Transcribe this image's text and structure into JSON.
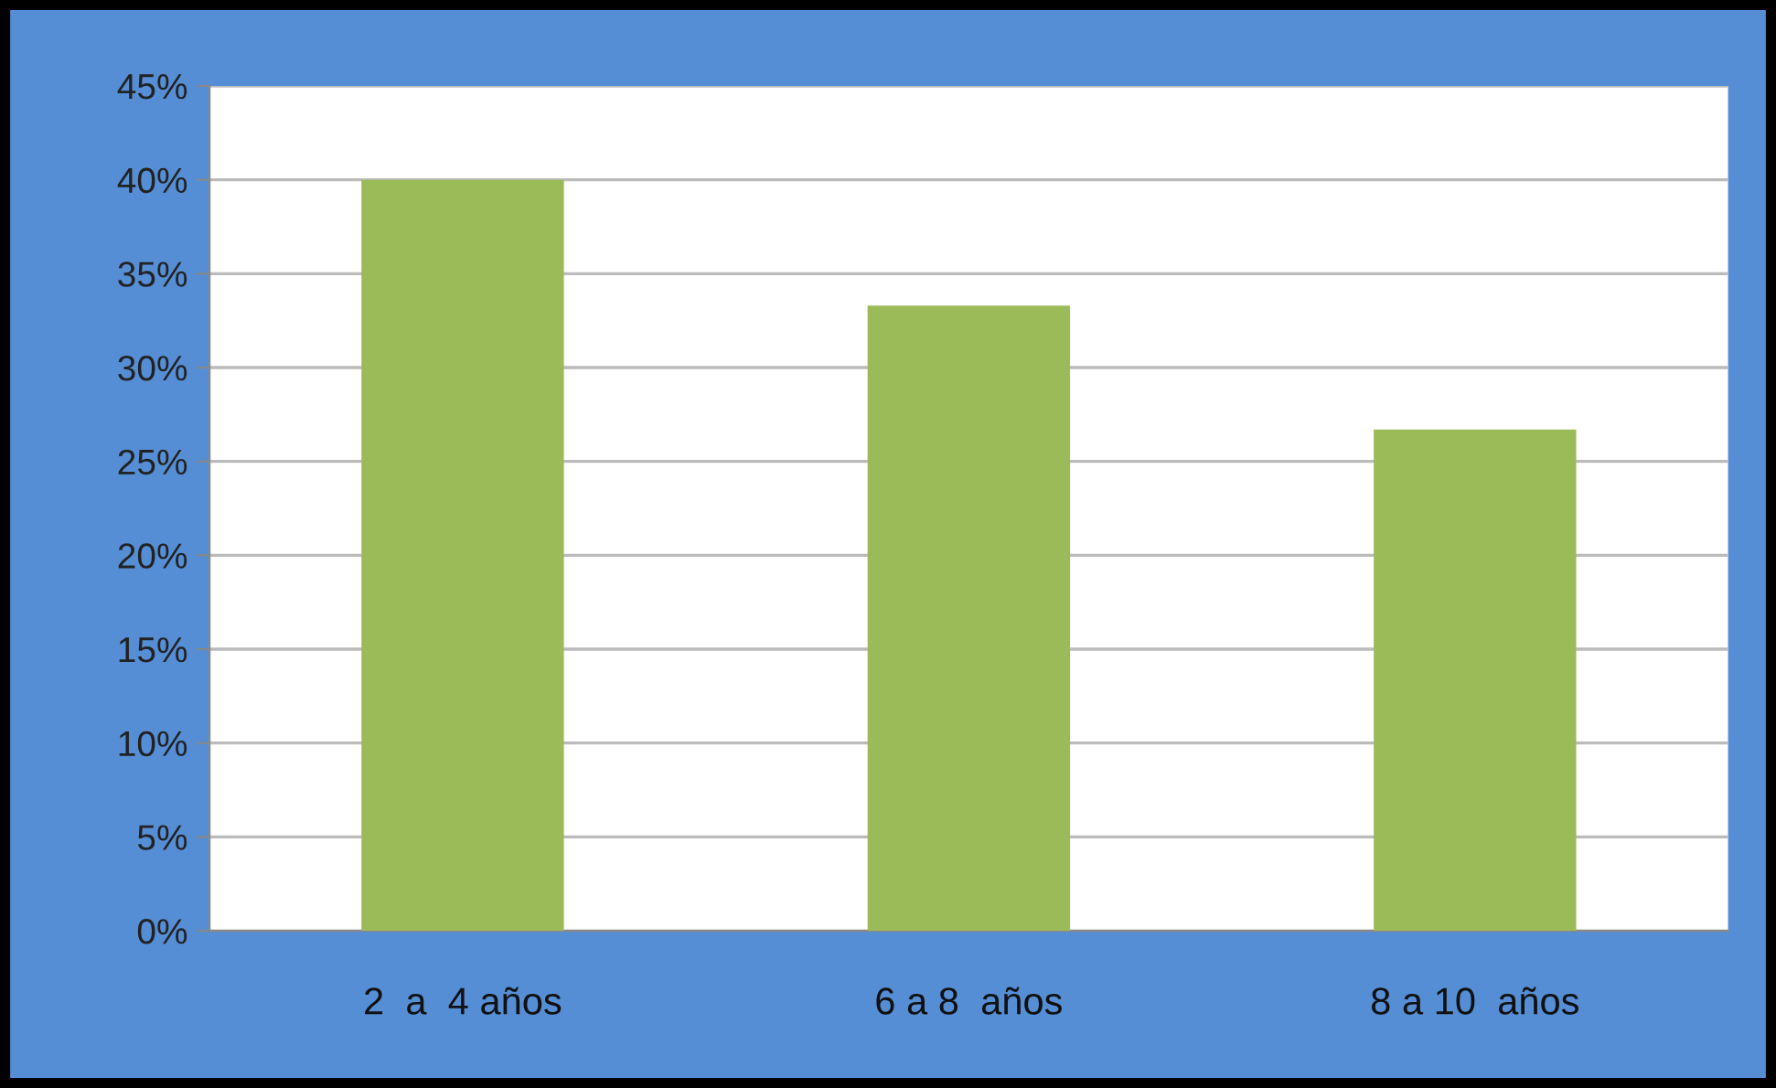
{
  "chart_data": {
    "type": "bar",
    "categories": [
      "2  a  4 años",
      "6 a 8  años",
      "8 a 10  años"
    ],
    "values": [
      40,
      33.3,
      26.7
    ],
    "color": "#9bbb59",
    "ylim": [
      0,
      45
    ],
    "yticks": [
      {
        "value": 0,
        "label": "0%"
      },
      {
        "value": 5,
        "label": "5%"
      },
      {
        "value": 10,
        "label": "10%"
      },
      {
        "value": 15,
        "label": "15%"
      },
      {
        "value": 20,
        "label": "20%"
      },
      {
        "value": 25,
        "label": "25%"
      },
      {
        "value": 30,
        "label": "30%"
      },
      {
        "value": 35,
        "label": "35%"
      },
      {
        "value": 40,
        "label": "40%"
      },
      {
        "value": 45,
        "label": "45%"
      }
    ],
    "grid": "y",
    "legend": false
  }
}
